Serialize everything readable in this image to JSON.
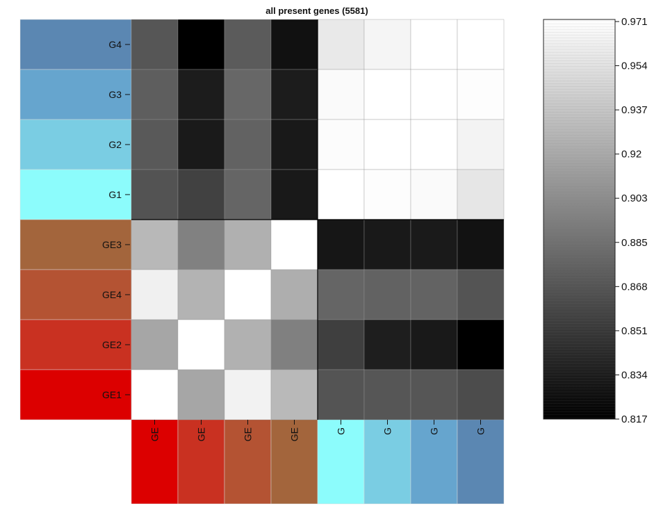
{
  "chart_data": {
    "type": "heatmap",
    "title": "all present genes (5581)",
    "rows": [
      {
        "label": "G4",
        "color": "#5b87b2"
      },
      {
        "label": "G3",
        "color": "#66a5ce"
      },
      {
        "label": "G2",
        "color": "#7acde3"
      },
      {
        "label": "G1",
        "color": "#8cfcfc"
      },
      {
        "label": "GE3",
        "color": "#a3653c"
      },
      {
        "label": "GE4",
        "color": "#b45333"
      },
      {
        "label": "GE2",
        "color": "#c93121"
      },
      {
        "label": "GE1",
        "color": "#dc0000"
      }
    ],
    "columns": [
      {
        "label": "GE",
        "color": "#dc0000"
      },
      {
        "label": "GE",
        "color": "#c93121"
      },
      {
        "label": "GE",
        "color": "#b45333"
      },
      {
        "label": "GE",
        "color": "#a3653c"
      },
      {
        "label": "G",
        "color": "#8cfcfc"
      },
      {
        "label": "G",
        "color": "#7acde3"
      },
      {
        "label": "G",
        "color": "#66a5ce"
      },
      {
        "label": "G",
        "color": "#5b87b2"
      }
    ],
    "values": [
      [
        0.869,
        0.817,
        0.872,
        0.827,
        0.958,
        0.965,
        0.971,
        0.971
      ],
      [
        0.874,
        0.834,
        0.879,
        0.834,
        0.968,
        0.971,
        0.971,
        0.97
      ],
      [
        0.871,
        0.833,
        0.876,
        0.832,
        0.969,
        0.971,
        0.971,
        0.964
      ],
      [
        0.867,
        0.856,
        0.878,
        0.832,
        0.971,
        0.97,
        0.968,
        0.956
      ],
      [
        0.928,
        0.895,
        0.923,
        0.971,
        0.83,
        0.832,
        0.833,
        0.828
      ],
      [
        0.962,
        0.925,
        0.971,
        0.922,
        0.878,
        0.876,
        0.877,
        0.868
      ],
      [
        0.917,
        0.971,
        0.924,
        0.894,
        0.855,
        0.835,
        0.832,
        0.817
      ],
      [
        0.971,
        0.917,
        0.963,
        0.929,
        0.868,
        0.869,
        0.869,
        0.863
      ]
    ],
    "color_scale": {
      "min": 0.817,
      "max": 0.971,
      "low_color": "#000000",
      "high_color": "#ffffff"
    },
    "colorbar_ticks": [
      "0.971",
      "0.954",
      "0.937",
      "0.92",
      "0.903",
      "0.885",
      "0.868",
      "0.851",
      "0.834",
      "0.817"
    ],
    "block_divider_after": 4
  }
}
